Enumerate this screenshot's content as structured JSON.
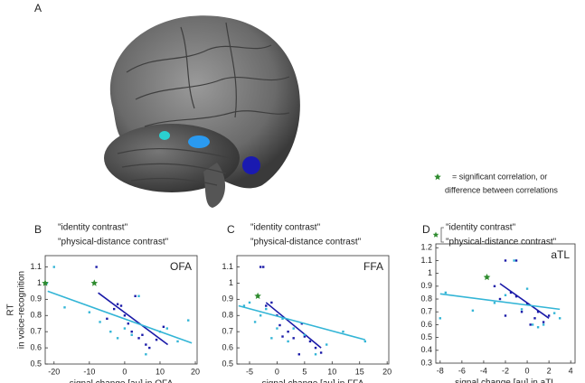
{
  "panel_a": {
    "label": "A",
    "star_color": "#2e8b2e",
    "note_lines": [
      "= significant correlation, or",
      "difference between correlations"
    ]
  },
  "chart_data": [
    {
      "type": "scatter",
      "panel": "B",
      "region": "OFA",
      "region_color": "#33c8e0",
      "xlabel": "signal change [au] in OFA",
      "ylabel": [
        "RT",
        "in voice-recognition"
      ],
      "xlim": [
        -22.5,
        20.5
      ],
      "ylim": [
        0.5,
        1.17
      ],
      "xticks": [
        -20,
        -10,
        0,
        10,
        20
      ],
      "yticks": [
        0.5,
        0.6,
        0.7,
        0.8,
        0.9,
        1,
        1.1
      ],
      "series": [
        {
          "name": "\"identity contrast\"",
          "color": "#1a1aa8",
          "x": [
            -8,
            -5,
            -3,
            -2,
            -1,
            0,
            1,
            2,
            3,
            4,
            5,
            6,
            7,
            9,
            11
          ],
          "values": [
            1.1,
            0.78,
            0.84,
            0.87,
            0.86,
            0.8,
            0.75,
            0.7,
            0.92,
            0.66,
            0.68,
            0.62,
            0.6,
            0.65,
            0.73
          ],
          "fit": {
            "x": [
              -7.5,
              12.2
            ],
            "y": [
              0.94,
              0.62
            ]
          }
        },
        {
          "name": "\"physical-distance contrast\"",
          "color": "#33b5d6",
          "x": [
            -22,
            -20,
            -17,
            -10,
            -7,
            -4,
            -2,
            0,
            2,
            4,
            6,
            10,
            12,
            15,
            18
          ],
          "values": [
            1.0,
            1.1,
            0.85,
            0.82,
            0.76,
            0.7,
            0.66,
            0.72,
            0.68,
            0.92,
            0.56,
            0.7,
            0.72,
            0.64,
            0.77
          ],
          "fit": {
            "x": [
              -21.8,
              19
            ],
            "y": [
              0.95,
              0.63
            ]
          }
        }
      ],
      "markers": {
        "color": "#2e8b2e",
        "x": [
          -22.5,
          -8.6
        ],
        "y": [
          1.0,
          1.0
        ]
      }
    },
    {
      "type": "scatter",
      "panel": "C",
      "region": "FFA",
      "region_color": "#33b5d6",
      "xlabel": "signal change [au] in FFA",
      "xlim": [
        -7.3,
        20.3
      ],
      "ylim": [
        0.5,
        1.17
      ],
      "xticks": [
        -5,
        0,
        5,
        10,
        15,
        20
      ],
      "yticks": [
        0.5,
        0.6,
        0.7,
        0.8,
        0.9,
        1,
        1.1
      ],
      "series": [
        {
          "name": "\"identity contrast\"",
          "color": "#1a1aa8",
          "x": [
            -3,
            -2.5,
            -2,
            -1,
            0,
            0.5,
            1,
            2,
            3,
            4,
            5,
            6,
            7,
            8,
            4.5
          ],
          "values": [
            1.1,
            1.1,
            0.86,
            0.88,
            0.8,
            0.74,
            0.67,
            0.7,
            0.66,
            0.56,
            0.67,
            0.64,
            0.6,
            0.57,
            0.75
          ],
          "fit": {
            "x": [
              -2,
              8
            ],
            "y": [
              0.88,
              0.6
            ]
          }
        },
        {
          "name": "\"physical-distance contrast\"",
          "color": "#33b5d6",
          "x": [
            -6,
            -5,
            -4,
            -3,
            -2,
            -1,
            0,
            1,
            2,
            3,
            5,
            7,
            9,
            12,
            16
          ],
          "values": [
            0.86,
            0.88,
            0.76,
            0.8,
            0.84,
            0.66,
            0.72,
            0.78,
            0.64,
            0.72,
            0.68,
            0.56,
            0.62,
            0.7,
            0.64
          ],
          "fit": {
            "x": [
              -7,
              16
            ],
            "y": [
              0.86,
              0.65
            ]
          }
        }
      ],
      "markers": {
        "color": "#2e8b2e",
        "x": [
          -3.5
        ],
        "y": [
          0.92
        ]
      }
    },
    {
      "type": "scatter",
      "panel": "D",
      "region": "aTL",
      "region_color": "#1a1aa8",
      "xlabel": "signal change [au] in aTL",
      "xlim": [
        -8.4,
        4.4
      ],
      "ylim": [
        0.3,
        1.23
      ],
      "xticks": [
        -8,
        -6,
        -4,
        -2,
        0,
        2,
        4
      ],
      "yticks": [
        0.3,
        0.4,
        0.5,
        0.6,
        0.7,
        0.8,
        0.9,
        1,
        1.1,
        1.2
      ],
      "series": [
        {
          "name": "\"identity contrast\"",
          "color": "#1a1aa8",
          "x": [
            -3,
            -2.5,
            -2,
            -1.5,
            -1,
            -0.5,
            0,
            0.3,
            0.7,
            1,
            1.5,
            2,
            -2,
            -1
          ],
          "values": [
            0.9,
            0.8,
            1.1,
            0.85,
            1.1,
            0.7,
            0.76,
            0.6,
            0.65,
            0.7,
            0.62,
            0.67,
            0.67,
            0.82
          ],
          "fit": {
            "x": [
              -2.5,
              2
            ],
            "y": [
              0.92,
              0.65
            ]
          }
        },
        {
          "name": "\"physical-distance contrast\"",
          "color": "#33b5d6",
          "x": [
            -8,
            -7.5,
            -5,
            -3,
            -2,
            -1.2,
            -0.5,
            0,
            0.5,
            1,
            1.5,
            2.5,
            3
          ],
          "values": [
            0.65,
            0.85,
            0.71,
            0.77,
            0.83,
            1.1,
            0.72,
            0.88,
            0.6,
            0.58,
            0.6,
            0.69,
            0.65
          ],
          "fit": {
            "x": [
              -8,
              3
            ],
            "y": [
              0.84,
              0.72
            ]
          }
        }
      ],
      "markers": {
        "color": "#2e8b2e",
        "x": [
          -3.7
        ],
        "y": [
          0.97
        ]
      },
      "legend_star": true
    }
  ]
}
